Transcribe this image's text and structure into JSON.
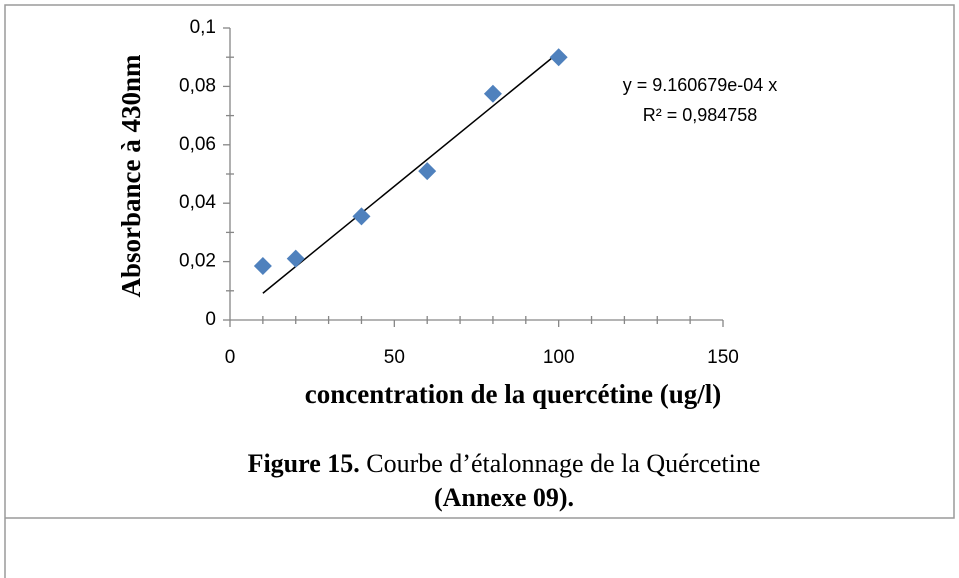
{
  "chart_data": {
    "type": "scatter",
    "ylabel": "Absorbance à 430nm",
    "xlabel": "concentration de la quercétine (ug/l)",
    "x": [
      10,
      20,
      40,
      60,
      80,
      100
    ],
    "values": [
      0.0185,
      0.021,
      0.0355,
      0.051,
      0.0775,
      0.09
    ],
    "color": "#4f81bd",
    "xlim": [
      0,
      150
    ],
    "xticks": [
      0,
      50,
      100,
      150
    ],
    "xminorticks": [
      10,
      20,
      30,
      40,
      60,
      70,
      80,
      90,
      110,
      120,
      130,
      140
    ],
    "ylim": [
      0,
      0.1
    ],
    "yticks": [
      0,
      {
        "value": 0.02,
        "label": "0,02"
      },
      {
        "value": 0.04,
        "label": "0,04"
      },
      {
        "value": 0.06,
        "label": "0,06"
      },
      {
        "value": 0.08,
        "label": "0,08"
      },
      {
        "value": 0.1,
        "label": "0,1"
      }
    ],
    "yminorticks": [
      0.01,
      0.03,
      0.05,
      0.07,
      0.09
    ],
    "trendline": {
      "slope": 0.0009160679,
      "x": [
        10,
        100
      ],
      "equation": "y = 9.160679e-04 x",
      "r2": "R² = 0,984758"
    }
  },
  "caption": {
    "label": "Figure 15.",
    "text": " Courbe d’étalonnage de la Quércetine",
    "note": "(Annexe 09)."
  }
}
